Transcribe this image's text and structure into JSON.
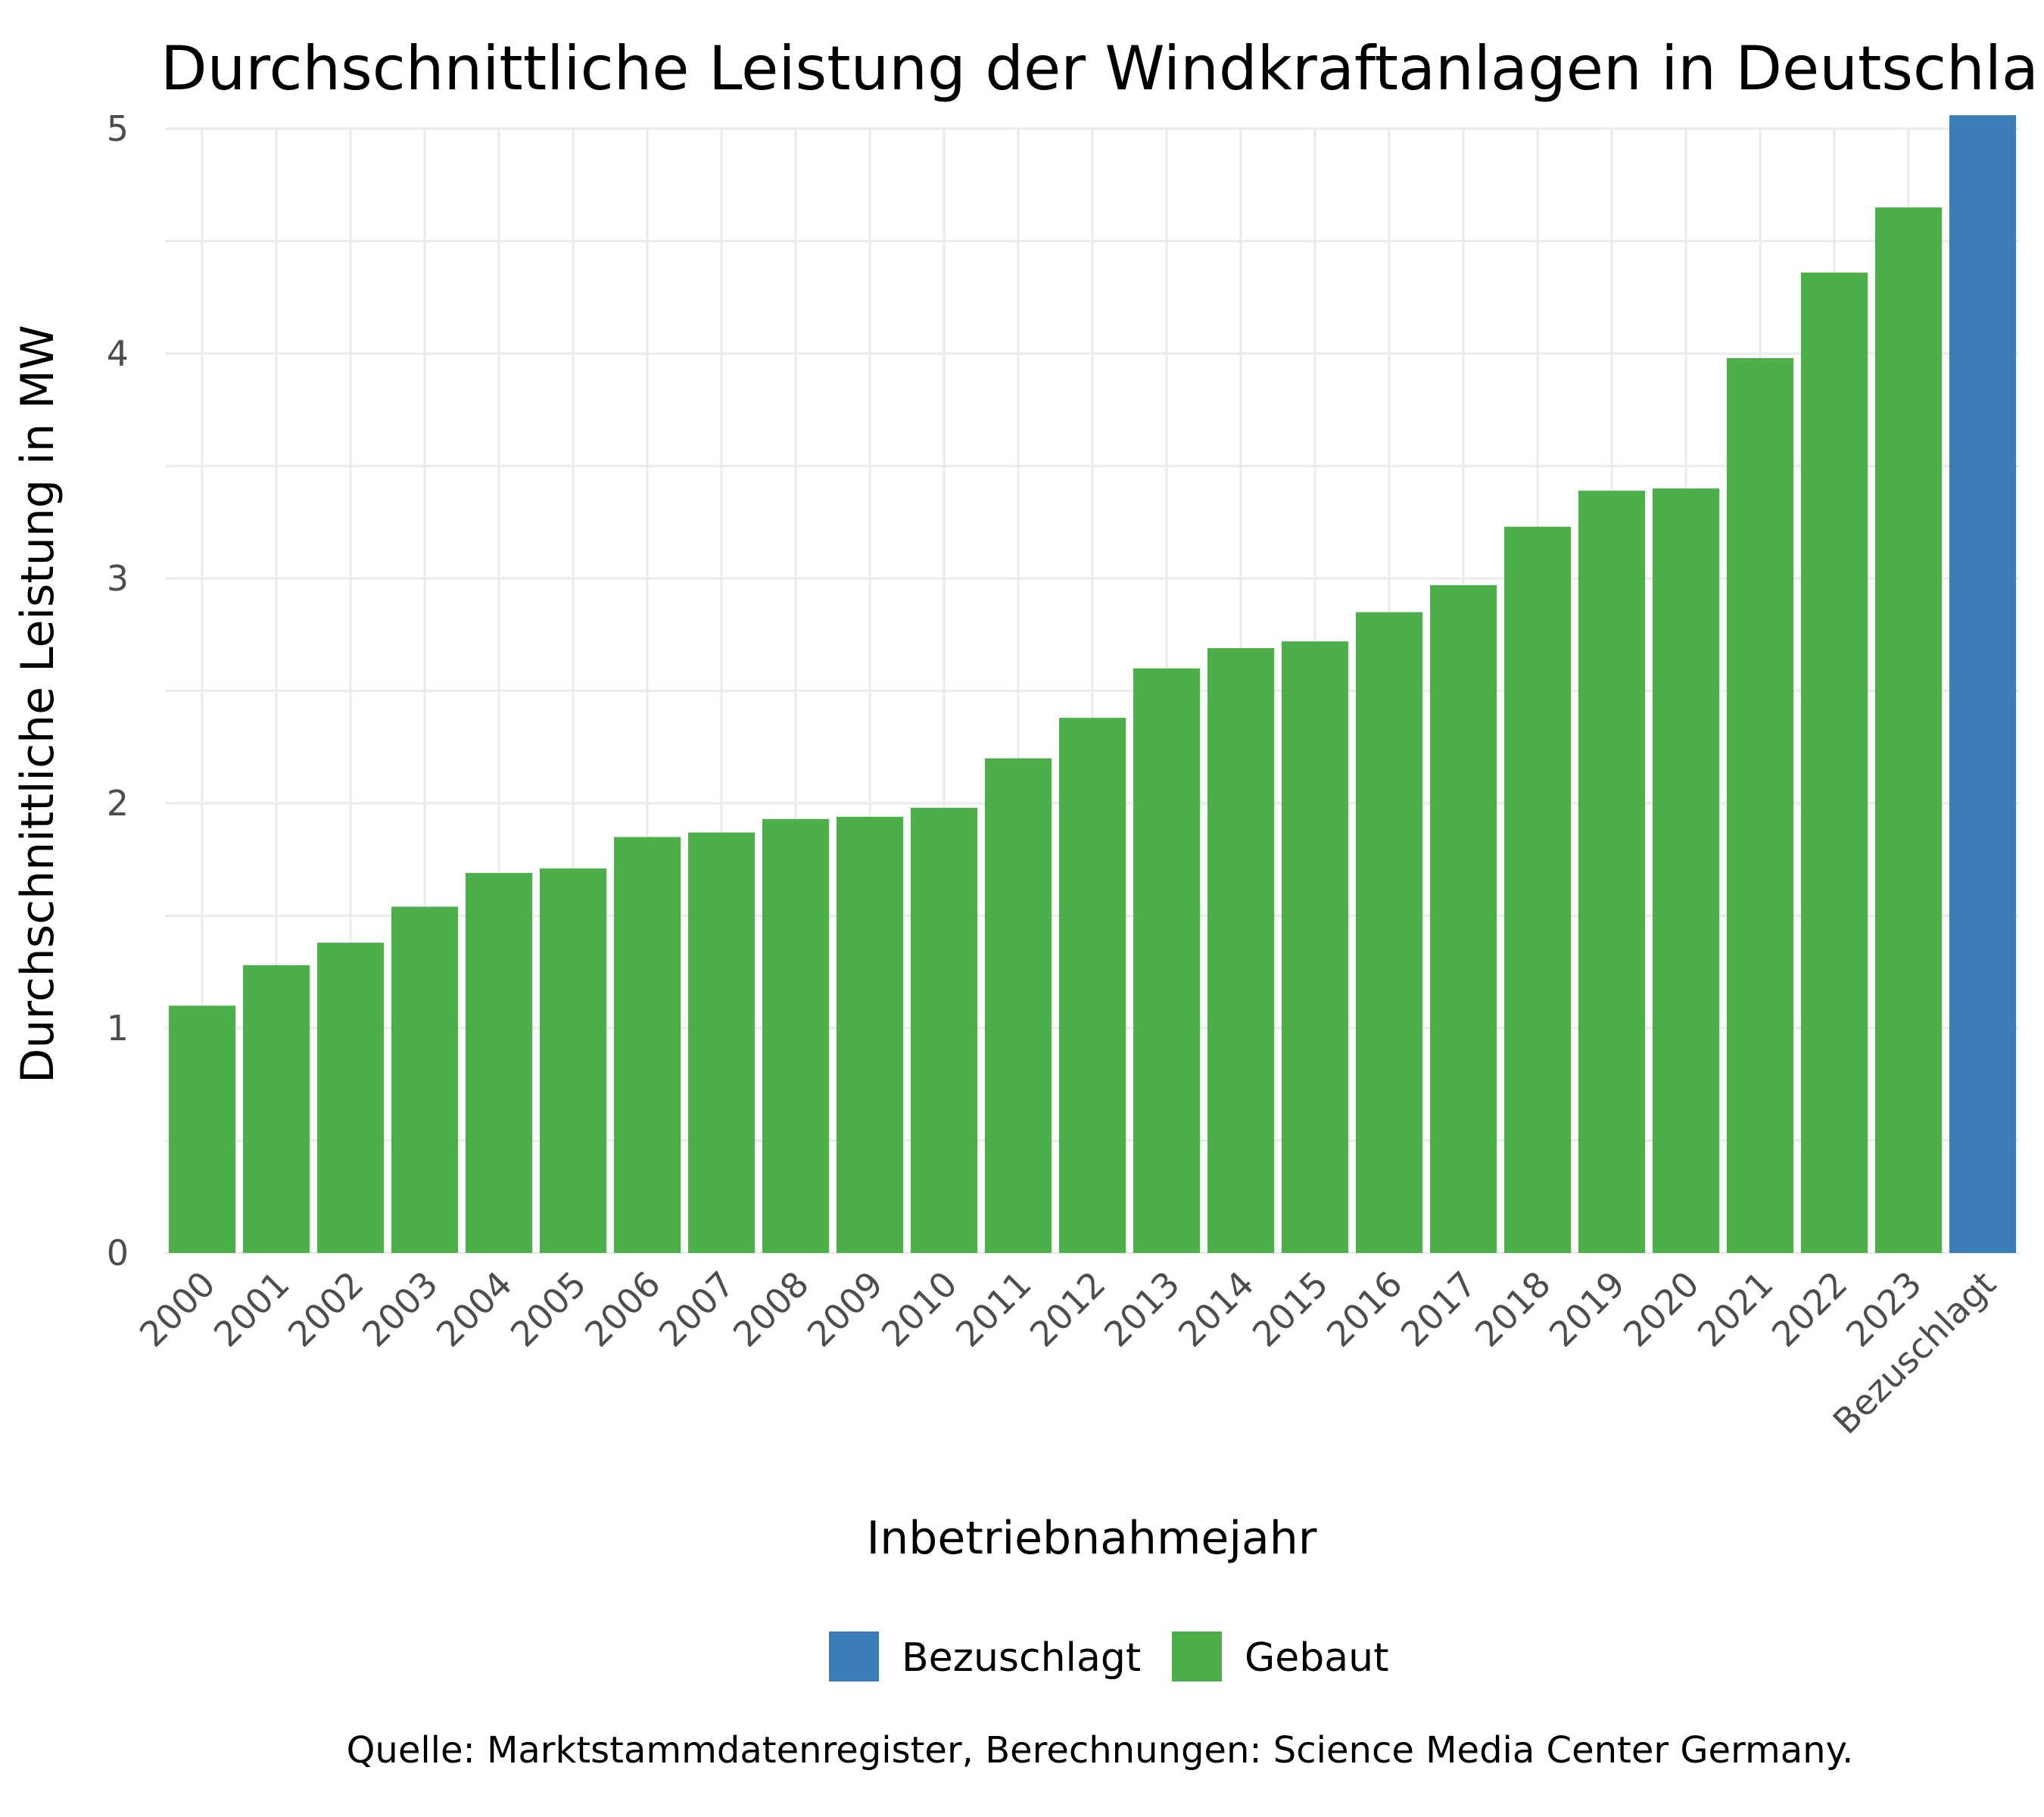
{
  "chart_data": {
    "type": "bar",
    "title": "Durchschnittliche Leistung der Windkraftanlagen in Deutschland",
    "xlabel": "Inbetriebnahmejahr",
    "ylabel": "Durchschnittliche Leistung in MW",
    "ylim": [
      0,
      5
    ],
    "yticks": [
      "0",
      "1",
      "2",
      "3",
      "4",
      "5"
    ],
    "grid": true,
    "categories": [
      "2000",
      "2001",
      "2002",
      "2003",
      "2004",
      "2005",
      "2006",
      "2007",
      "2008",
      "2009",
      "2010",
      "2011",
      "2012",
      "2013",
      "2014",
      "2015",
      "2016",
      "2017",
      "2018",
      "2019",
      "2020",
      "2021",
      "2022",
      "2023",
      "Bezuschlagt"
    ],
    "values": [
      1.1,
      1.28,
      1.38,
      1.54,
      1.69,
      1.71,
      1.85,
      1.87,
      1.93,
      1.94,
      1.98,
      2.2,
      2.38,
      2.6,
      2.69,
      2.72,
      2.85,
      2.97,
      3.23,
      3.39,
      3.4,
      3.98,
      4.36,
      4.65,
      5.06
    ],
    "groups": [
      "Gebaut",
      "Gebaut",
      "Gebaut",
      "Gebaut",
      "Gebaut",
      "Gebaut",
      "Gebaut",
      "Gebaut",
      "Gebaut",
      "Gebaut",
      "Gebaut",
      "Gebaut",
      "Gebaut",
      "Gebaut",
      "Gebaut",
      "Gebaut",
      "Gebaut",
      "Gebaut",
      "Gebaut",
      "Gebaut",
      "Gebaut",
      "Gebaut",
      "Gebaut",
      "Gebaut",
      "Bezuschlagt"
    ],
    "legend": {
      "placement": "bottom",
      "items": [
        {
          "name": "Bezuschlagt",
          "color": "#3a7db9"
        },
        {
          "name": "Gebaut",
          "color": "#4daf4a"
        }
      ]
    },
    "caption": "Quelle: Marktstammdatenregister, Berechnungen: Science Media Center Germany."
  }
}
